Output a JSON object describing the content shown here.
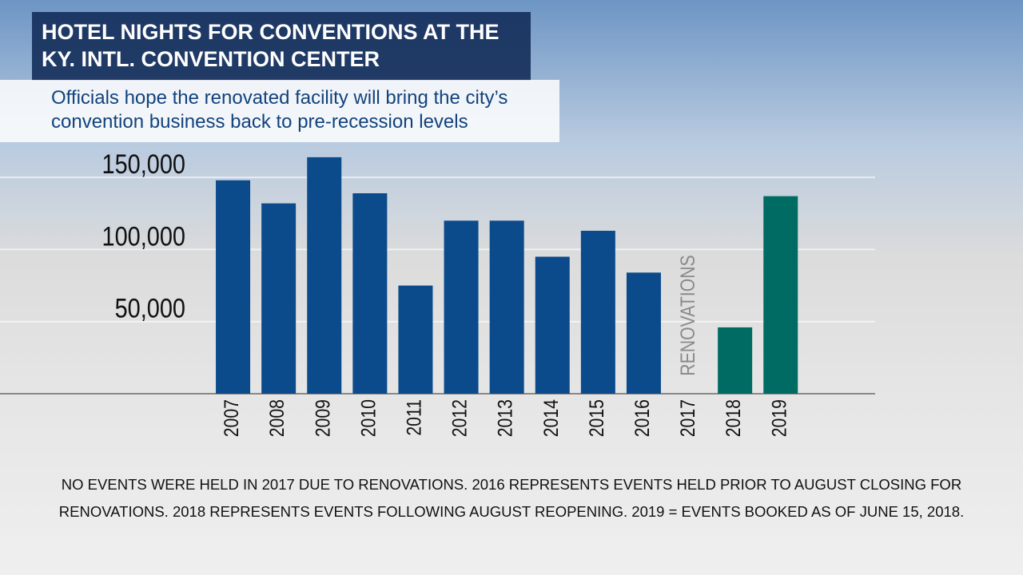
{
  "chart_data": {
    "type": "bar",
    "title": "HOTEL NIGHTS FOR CONVENTIONS AT THE KY. INTL. CONVENTION CENTER",
    "subtitle": "Officials hope the renovated facility will bring the city’s convention business back to pre-recession levels",
    "categories": [
      "2007",
      "2008",
      "2009",
      "2010",
      "2011",
      "2012",
      "2013",
      "2014",
      "2015",
      "2016",
      "2017",
      "2018",
      "2019"
    ],
    "values": [
      148000,
      132000,
      164000,
      139000,
      75000,
      120000,
      120000,
      95000,
      113000,
      84000,
      null,
      46000,
      137000
    ],
    "colors": [
      "#0b4a8b",
      "#0b4a8b",
      "#0b4a8b",
      "#0b4a8b",
      "#0b4a8b",
      "#0b4a8b",
      "#0b4a8b",
      "#0b4a8b",
      "#0b4a8b",
      "#0b4a8b",
      "#0b4a8b",
      "#006b62",
      "#006b62"
    ],
    "ylim": [
      0,
      175000
    ],
    "yticks": [
      {
        "value": 50000,
        "label": "50,000"
      },
      {
        "value": 100000,
        "label": "100,000"
      },
      {
        "value": 150000,
        "label": "150,000"
      }
    ],
    "grid": true,
    "annotation": "RENOVATIONS",
    "footnote": "NO EVENTS WERE HELD IN 2017 DUE TO RENOVATIONS. 2016 REPRESENTS EVENTS HELD PRIOR TO AUGUST CLOSING FOR RENOVATIONS. 2018 REPRESENTS EVENTS FOLLOWING AUGUST REOPENING. 2019 = EVENTS BOOKED AS OF JUNE 15, 2018."
  }
}
